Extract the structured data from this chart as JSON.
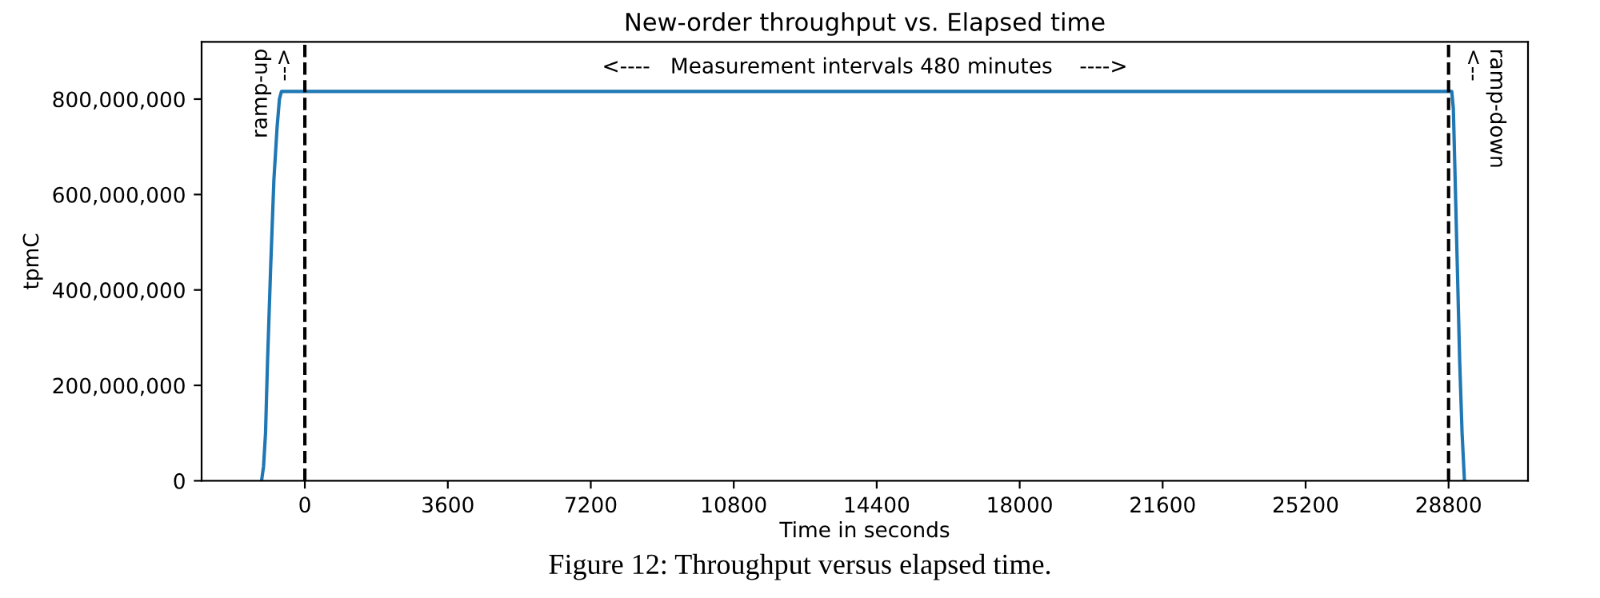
{
  "chart_data": {
    "type": "line",
    "title": "New-order throughput vs. Elapsed time",
    "xlabel": "Time in seconds",
    "ylabel": "tpmC",
    "x": [
      -1090,
      -1040,
      -990,
      -940,
      -860,
      -780,
      -700,
      -640,
      -590,
      28880,
      28920,
      28960,
      29020,
      29080,
      29140,
      29200
    ],
    "series": [
      {
        "color": "#1f77b4",
        "values": [
          0,
          30000000,
          100000000,
          250000000,
          450000000,
          630000000,
          740000000,
          800000000,
          816000000,
          816000000,
          780000000,
          650000000,
          450000000,
          250000000,
          100000000,
          0
        ]
      }
    ],
    "xlim": [
      -2600,
      30800
    ],
    "ylim": [
      0,
      920000000
    ],
    "xticks": [
      0,
      3600,
      7200,
      10800,
      14400,
      18000,
      21600,
      25200,
      28800
    ],
    "yticks": [
      {
        "value": 0,
        "label": "0"
      },
      {
        "value": 200000000,
        "label": "200,000,000"
      },
      {
        "value": 400000000,
        "label": "400,000,000"
      },
      {
        "value": 600000000,
        "label": "600,000,000"
      },
      {
        "value": 800000000,
        "label": "800,000,000"
      }
    ],
    "ref_lines": [
      {
        "axis": "x",
        "value": 0,
        "color": "#000000",
        "line_style": "dashed"
      },
      {
        "axis": "x",
        "value": 28800,
        "color": "#000000",
        "line_style": "dashed"
      }
    ],
    "annotations": [
      "<----   Measurement intervals 480 minutes    ---->",
      "ramp-up\n-->",
      "ramp-down\n<--",
      "Figure 12: Throughput versus elapsed time."
    ],
    "grid": false,
    "legend": false,
    "marker": "none",
    "line_style": "solid"
  }
}
